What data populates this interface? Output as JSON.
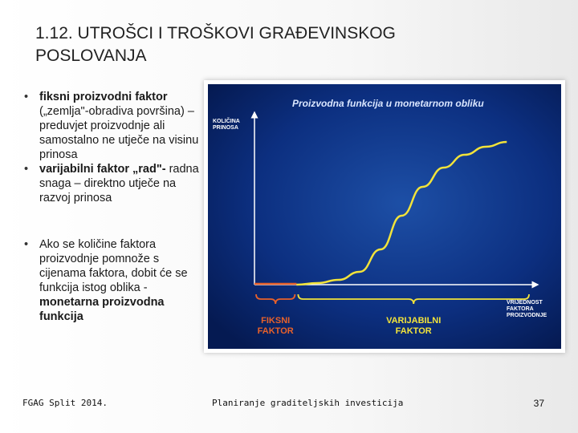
{
  "slide": {
    "title": "1.12. UTROŠCI I TROŠKOVI GRAĐEVINSKOG\nPOSLOVANJA",
    "bullets": [
      {
        "bold": "fiksni proizvodni faktor",
        "text": "(„zemlja\"-obradiva površina) – preduvjet proizvodnje ali samostalno ne utječe na visinu prinosa"
      },
      {
        "bold": "varijabilni faktor „rad\"-",
        "text": "radna snaga – direktno utječe na razvoj prinosa"
      },
      {
        "text": "Ako se količine faktora proizvodnje pomnože s cijenama faktora, dobit će se funkcija istog oblika -",
        "bold_tail": "monetarna proizvodna funkcija"
      }
    ],
    "footer": {
      "left": "FGAG Split 2014.",
      "center": "Planiranje graditeljskih investicija",
      "page": "37"
    }
  },
  "chart_data": {
    "type": "line",
    "title": "Proizvodna funkcija u monetarnom obliku",
    "ylabel": [
      "KOLIČINA",
      "PRINOSA"
    ],
    "xlabel": [
      "VRIJEDNOST",
      "FAKTORA",
      "PROIZVODNJE"
    ],
    "regions": [
      {
        "label": [
          "FIKSNI",
          "FAKTOR"
        ],
        "from": 0,
        "to": 1,
        "color": "#e8612a"
      },
      {
        "label": [
          "VARIJABILNI",
          "FAKTOR"
        ],
        "from": 1,
        "to": 6,
        "color": "#f2e33a"
      }
    ],
    "series": [
      {
        "x": [
          0,
          1,
          1.5,
          2,
          2.5,
          3,
          3.5,
          4,
          4.5,
          5,
          5.5,
          6
        ],
        "y": [
          0,
          0,
          0.1,
          0.3,
          0.8,
          2.2,
          4.3,
          6.1,
          7.3,
          8.1,
          8.6,
          8.9
        ]
      }
    ],
    "xlim": [
      0,
      6.3
    ],
    "ylim": [
      0,
      10
    ],
    "grid": false,
    "colors": {
      "background": "#0a2a6e",
      "axis": "#ffffff",
      "title": "#d9e6ff",
      "label": "#ffffff",
      "curve": "#f2e33a",
      "fixed": "#e8612a"
    }
  }
}
